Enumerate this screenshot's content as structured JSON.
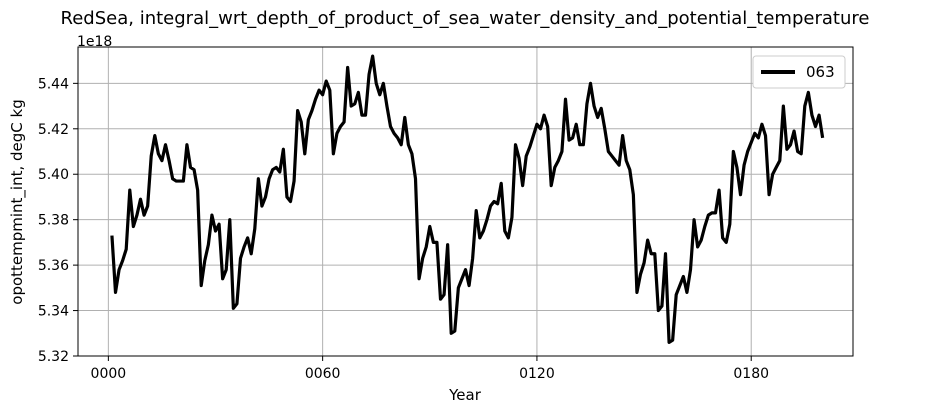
{
  "chart_data": {
    "type": "line",
    "title": "RedSea, integral_wrt_depth_of_product_of_sea_water_density_and_potential_temperature",
    "xlabel": "Year",
    "ylabel": "opottempmint_int, degC kg",
    "offset_label": "1e18",
    "y_scale": 1e+18,
    "xlim": [
      -8.5,
      208.5
    ],
    "ylim": [
      5.32,
      5.456
    ],
    "x_ticks": [
      0,
      60,
      120,
      180
    ],
    "x_tick_labels": [
      "0000",
      "0060",
      "0120",
      "0180"
    ],
    "y_ticks": [
      5.32,
      5.34,
      5.36,
      5.38,
      5.4,
      5.42,
      5.44
    ],
    "y_tick_labels": [
      "5.32",
      "5.34",
      "5.36",
      "5.38",
      "5.40",
      "5.42",
      "5.44"
    ],
    "grid": true,
    "legend_position": "top-right",
    "series": [
      {
        "name": "063",
        "color": "#000000",
        "x": [
          1,
          2,
          3,
          4,
          5,
          6,
          7,
          8,
          9,
          10,
          11,
          12,
          13,
          14,
          15,
          16,
          17,
          18,
          19,
          20,
          21,
          22,
          23,
          24,
          25,
          26,
          27,
          28,
          29,
          30,
          31,
          32,
          33,
          34,
          35,
          36,
          37,
          38,
          39,
          40,
          41,
          42,
          43,
          44,
          45,
          46,
          47,
          48,
          49,
          50,
          51,
          52,
          53,
          54,
          55,
          56,
          57,
          58,
          59,
          60,
          61,
          62,
          63,
          64,
          65,
          66,
          67,
          68,
          69,
          70,
          71,
          72,
          73,
          74,
          75,
          76,
          77,
          78,
          79,
          80,
          81,
          82,
          83,
          84,
          85,
          86,
          87,
          88,
          89,
          90,
          91,
          92,
          93,
          94,
          95,
          96,
          97,
          98,
          99,
          100,
          101,
          102,
          103,
          104,
          105,
          106,
          107,
          108,
          109,
          110,
          111,
          112,
          113,
          114,
          115,
          116,
          117,
          118,
          119,
          120,
          121,
          122,
          123,
          124,
          125,
          126,
          127,
          128,
          129,
          130,
          131,
          132,
          133,
          134,
          135,
          136,
          137,
          138,
          139,
          140,
          141,
          142,
          143,
          144,
          145,
          146,
          147,
          148,
          149,
          150,
          151,
          152,
          153,
          154,
          155,
          156,
          157,
          158,
          159,
          160,
          161,
          162,
          163,
          164,
          165,
          166,
          167,
          168,
          169,
          170,
          171,
          172,
          173,
          174,
          175,
          176,
          177,
          178,
          179,
          180,
          181,
          182,
          183,
          184,
          185,
          186,
          187,
          188,
          189,
          190,
          191,
          192,
          193,
          194,
          195,
          196,
          197,
          198,
          199,
          200
        ],
        "values": [
          5.373,
          5.348,
          5.358,
          5.362,
          5.367,
          5.393,
          5.377,
          5.382,
          5.389,
          5.382,
          5.386,
          5.408,
          5.417,
          5.409,
          5.406,
          5.413,
          5.406,
          5.398,
          5.397,
          5.397,
          5.397,
          5.413,
          5.403,
          5.402,
          5.393,
          5.351,
          5.362,
          5.369,
          5.382,
          5.375,
          5.378,
          5.354,
          5.358,
          5.38,
          5.341,
          5.343,
          5.363,
          5.368,
          5.372,
          5.365,
          5.376,
          5.398,
          5.386,
          5.39,
          5.398,
          5.402,
          5.403,
          5.401,
          5.411,
          5.39,
          5.388,
          5.397,
          5.428,
          5.423,
          5.409,
          5.424,
          5.428,
          5.433,
          5.437,
          5.435,
          5.441,
          5.437,
          5.409,
          5.418,
          5.421,
          5.423,
          5.447,
          5.43,
          5.431,
          5.436,
          5.426,
          5.426,
          5.444,
          5.452,
          5.44,
          5.435,
          5.44,
          5.43,
          5.421,
          5.418,
          5.416,
          5.413,
          5.425,
          5.413,
          5.409,
          5.398,
          5.354,
          5.363,
          5.368,
          5.377,
          5.37,
          5.37,
          5.345,
          5.347,
          5.369,
          5.33,
          5.331,
          5.35,
          5.354,
          5.358,
          5.351,
          5.363,
          5.384,
          5.372,
          5.375,
          5.38,
          5.386,
          5.388,
          5.387,
          5.396,
          5.375,
          5.372,
          5.381,
          5.413,
          5.407,
          5.395,
          5.408,
          5.412,
          5.417,
          5.422,
          5.42,
          5.426,
          5.421,
          5.395,
          5.403,
          5.406,
          5.41,
          5.433,
          5.415,
          5.416,
          5.422,
          5.413,
          5.413,
          5.431,
          5.44,
          5.43,
          5.425,
          5.429,
          5.42,
          5.41,
          5.408,
          5.406,
          5.404,
          5.417,
          5.406,
          5.402,
          5.391,
          5.348,
          5.356,
          5.361,
          5.371,
          5.365,
          5.365,
          5.34,
          5.342,
          5.365,
          5.326,
          5.327,
          5.347,
          5.351,
          5.355,
          5.348,
          5.358,
          5.38,
          5.368,
          5.371,
          5.377,
          5.382,
          5.383,
          5.383,
          5.393,
          5.372,
          5.37,
          5.378,
          5.41,
          5.403,
          5.391,
          5.404,
          5.41,
          5.414,
          5.418,
          5.416,
          5.422,
          5.417,
          5.391,
          5.4,
          5.403,
          5.406,
          5.43,
          5.411,
          5.413,
          5.419,
          5.41,
          5.409,
          5.43,
          5.436,
          5.426,
          5.421,
          5.426,
          5.416
        ]
      }
    ]
  }
}
